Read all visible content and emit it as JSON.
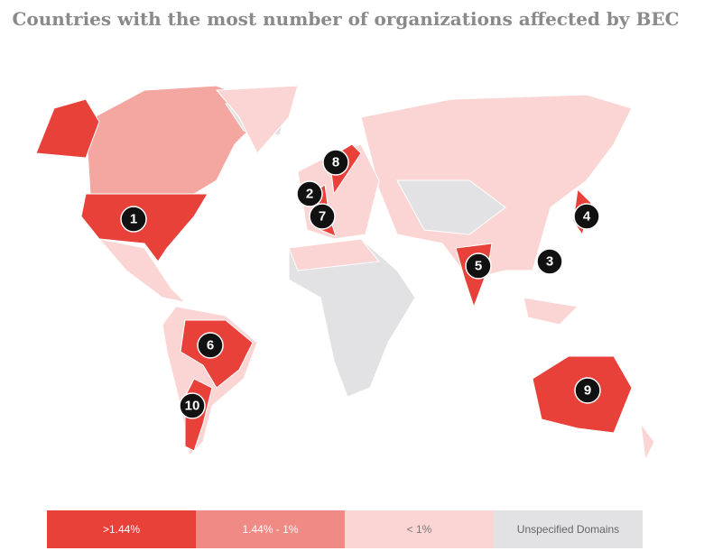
{
  "title": "Countries with the most number of organizations affected by BEC",
  "markers": [
    1,
    2,
    3,
    4,
    5,
    6,
    7,
    8,
    9,
    10
  ],
  "legend": [
    ">1.44%",
    "1.44% - 1%",
    "< 1%",
    "Unspecified Domains"
  ]
}
